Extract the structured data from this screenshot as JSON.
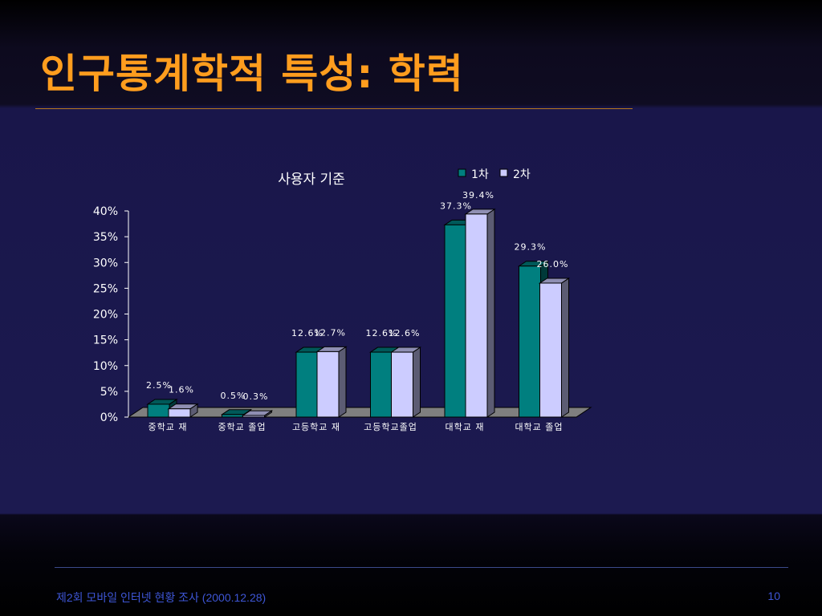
{
  "slide": {
    "title": "인구통계학적 특성: 학력",
    "footer": "제2회 모바일 인터넷 현황 조사 (2000.12.28)",
    "page_number": "10"
  },
  "colors": {
    "title": "#ff9d1e",
    "series_1": "#007f7f",
    "series_2": "#ccccff",
    "footer": "#3e56d6",
    "floor": "#7f7f7f"
  },
  "chart_data": {
    "type": "bar",
    "title": "사용자 기준",
    "categories": [
      "중학교 재",
      "중학교 졸업",
      "고등학교 재",
      "고등학교졸업",
      "대학교 재",
      "대학교 졸업"
    ],
    "series": [
      {
        "name": "1차",
        "values": [
          2.5,
          0.5,
          12.6,
          12.6,
          37.3,
          29.3
        ],
        "labels": [
          "2.5%",
          "0.5%",
          "12.6%",
          "12.6%",
          "37.3%",
          "29.3%"
        ]
      },
      {
        "name": "2차",
        "values": [
          1.6,
          0.3,
          12.7,
          12.6,
          39.4,
          26.0
        ],
        "labels": [
          "1.6%",
          "0.3%",
          "12.7%",
          "12.6%",
          "39.4%",
          "26.0%"
        ]
      }
    ],
    "y_ticks": [
      "0%",
      "5%",
      "10%",
      "15%",
      "20%",
      "25%",
      "30%",
      "35%",
      "40%"
    ],
    "ylim": [
      0,
      40
    ],
    "legend_position": "top-right",
    "grid": false,
    "style": "3d-clustered-bar"
  }
}
